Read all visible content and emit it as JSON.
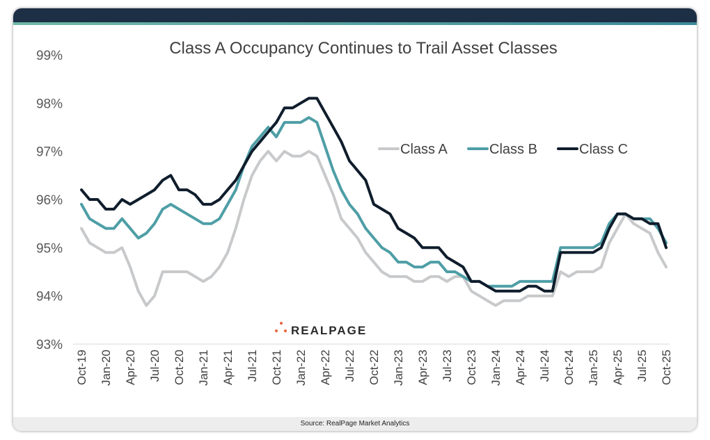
{
  "footer": {
    "source": "Source: RealPage Market Analytics"
  },
  "logo": {
    "text": "REALPAGE"
  },
  "chart_data": {
    "type": "line",
    "title": "Class A Occupancy Continues to Trail Asset Classes",
    "xlabel": "",
    "ylabel": "",
    "ylim": [
      93,
      99
    ],
    "yticks": [
      "93%",
      "94%",
      "95%",
      "96%",
      "97%",
      "98%",
      "99%"
    ],
    "xticks": [
      "Oct-19",
      "Jan-20",
      "Apr-20",
      "Jul-20",
      "Oct-20",
      "Jan-21",
      "Apr-21",
      "Jul-21",
      "Oct-21",
      "Jan-22",
      "Apr-22",
      "Jul-22",
      "Oct-22",
      "Jan-23",
      "Apr-23",
      "Jul-23",
      "Oct-23",
      "Jan-24",
      "Apr-24",
      "Jul-24",
      "Oct-24",
      "Jan-25",
      "Apr-25",
      "Jul-25",
      "Oct-25"
    ],
    "x_range": [
      "Oct-19",
      "Oct-25"
    ],
    "x_frequency": "monthly",
    "legend_position": "top-right",
    "grid": false,
    "series": [
      {
        "name": "Class A",
        "color": "#c8c9cb",
        "values": [
          95.4,
          95.1,
          95.0,
          94.9,
          94.9,
          95.0,
          94.6,
          94.1,
          93.8,
          94.0,
          94.5,
          94.5,
          94.5,
          94.5,
          94.4,
          94.3,
          94.4,
          94.6,
          94.9,
          95.4,
          96.0,
          96.5,
          96.8,
          97.0,
          96.8,
          97.0,
          96.9,
          96.9,
          97.0,
          96.9,
          96.5,
          96.1,
          95.6,
          95.4,
          95.2,
          94.9,
          94.7,
          94.5,
          94.4,
          94.4,
          94.4,
          94.3,
          94.3,
          94.4,
          94.4,
          94.3,
          94.4,
          94.4,
          94.1,
          94.0,
          93.9,
          93.8,
          93.9,
          93.9,
          93.9,
          94.0,
          94.0,
          94.0,
          94.0,
          94.5,
          94.4,
          94.5,
          94.5,
          94.5,
          94.6,
          95.1,
          95.4,
          95.7,
          95.5,
          95.4,
          95.3,
          94.9,
          94.6
        ]
      },
      {
        "name": "Class B",
        "color": "#4e9ea6",
        "values": [
          95.9,
          95.6,
          95.5,
          95.4,
          95.4,
          95.6,
          95.4,
          95.2,
          95.3,
          95.5,
          95.8,
          95.9,
          95.8,
          95.7,
          95.6,
          95.5,
          95.5,
          95.6,
          95.9,
          96.2,
          96.7,
          97.1,
          97.3,
          97.5,
          97.3,
          97.6,
          97.6,
          97.6,
          97.7,
          97.6,
          97.1,
          96.6,
          96.2,
          95.9,
          95.7,
          95.4,
          95.2,
          95.0,
          94.9,
          94.7,
          94.7,
          94.6,
          94.6,
          94.7,
          94.7,
          94.5,
          94.5,
          94.4,
          94.3,
          94.3,
          94.2,
          94.2,
          94.2,
          94.2,
          94.3,
          94.3,
          94.3,
          94.3,
          94.3,
          95.0,
          95.0,
          95.0,
          95.0,
          95.0,
          95.1,
          95.5,
          95.7,
          95.7,
          95.6,
          95.6,
          95.6,
          95.4,
          95.1
        ]
      },
      {
        "name": "Class C",
        "color": "#0f1d2c",
        "values": [
          96.2,
          96.0,
          96.0,
          95.8,
          95.8,
          96.0,
          95.9,
          96.0,
          96.1,
          96.2,
          96.4,
          96.5,
          96.2,
          96.2,
          96.1,
          95.9,
          95.9,
          96.0,
          96.2,
          96.4,
          96.7,
          97.0,
          97.2,
          97.4,
          97.6,
          97.9,
          97.9,
          98.0,
          98.1,
          98.1,
          97.8,
          97.5,
          97.2,
          96.8,
          96.6,
          96.4,
          95.9,
          95.8,
          95.7,
          95.4,
          95.3,
          95.2,
          95.0,
          95.0,
          95.0,
          94.8,
          94.7,
          94.6,
          94.3,
          94.3,
          94.2,
          94.1,
          94.1,
          94.1,
          94.1,
          94.2,
          94.2,
          94.1,
          94.1,
          94.9,
          94.9,
          94.9,
          94.9,
          94.9,
          95.0,
          95.4,
          95.7,
          95.7,
          95.6,
          95.6,
          95.5,
          95.5,
          95.0
        ]
      }
    ]
  }
}
